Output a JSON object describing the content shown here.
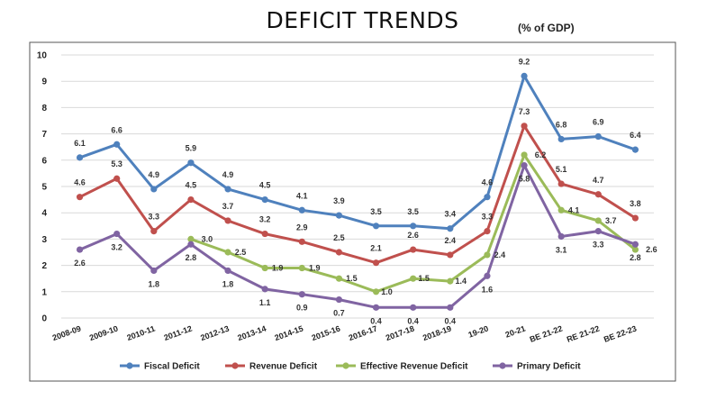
{
  "chart_data": {
    "type": "line",
    "title": "DEFICIT TRENDS",
    "subtitle": "(% of GDP)",
    "categories": [
      "2008-09",
      "2009-10",
      "2010-11",
      "2011-12",
      "2012-13",
      "2013-14",
      "2014-15",
      "2015-16",
      "2016-17",
      "2017-18",
      "2018-19",
      "19-20",
      "20-21",
      "BE 21-22",
      "RE 21-22",
      "BE 22-23"
    ],
    "ylim": [
      0,
      10
    ],
    "yticks": [
      "0",
      "1",
      "2",
      "3",
      "4",
      "5",
      "6",
      "7",
      "8",
      "9",
      "10"
    ],
    "grid": true,
    "legend_position": "bottom",
    "series": [
      {
        "name": "Fiscal Deficit",
        "color": "#4f81bd",
        "values": [
          6.1,
          6.6,
          4.9,
          5.9,
          4.9,
          4.5,
          4.1,
          3.9,
          3.5,
          3.5,
          3.4,
          4.6,
          9.2,
          6.8,
          6.9,
          6.4
        ],
        "labels": [
          "6.1",
          "6.6",
          "4.9",
          "5.9",
          "4.9",
          "4.5",
          "4.1",
          "3.9",
          "3.5",
          "3.5",
          "3.4",
          "4.6",
          "9.2",
          "6.8",
          "6.9",
          "6.4"
        ]
      },
      {
        "name": "Revenue Deficit",
        "color": "#c0504d",
        "values": [
          4.6,
          5.3,
          3.3,
          4.5,
          3.7,
          3.2,
          2.9,
          2.5,
          2.1,
          2.6,
          2.4,
          3.3,
          7.3,
          5.1,
          4.7,
          3.8
        ],
        "labels": [
          "4.6",
          "5.3",
          "3.3",
          "4.5",
          "3.7",
          "3.2",
          "2.9",
          "2.5",
          "2.1",
          "2.6",
          "2.4",
          "3.3",
          "7.3",
          "5.1",
          "4.7",
          "3.8"
        ]
      },
      {
        "name": "Effective Revenue Deficit",
        "color": "#9bbb59",
        "values": [
          null,
          null,
          null,
          3.0,
          2.5,
          1.9,
          1.9,
          1.5,
          1.0,
          1.5,
          1.4,
          2.4,
          6.2,
          4.1,
          3.7,
          2.6
        ],
        "labels": [
          null,
          null,
          null,
          "3.0",
          "2.5",
          "1.9",
          "1.9",
          "1.5",
          "1.0",
          "1.5",
          "1.4",
          "2.4",
          "6.2",
          "4.1",
          "3.7",
          "2.6"
        ]
      },
      {
        "name": "Primary Deficit",
        "color": "#8064a2",
        "values": [
          2.6,
          3.2,
          1.8,
          2.8,
          1.8,
          1.1,
          0.9,
          0.7,
          0.4,
          0.4,
          0.4,
          1.6,
          5.8,
          3.1,
          3.3,
          2.8
        ],
        "labels": [
          "2.6",
          "3.2",
          "1.8",
          "2.8",
          "1.8",
          "1.1",
          "0.9",
          "0.7",
          "0.4",
          "0.4",
          "0.4",
          "1.6",
          "5.8",
          "3.1",
          "3.3",
          "2.8"
        ]
      }
    ]
  }
}
